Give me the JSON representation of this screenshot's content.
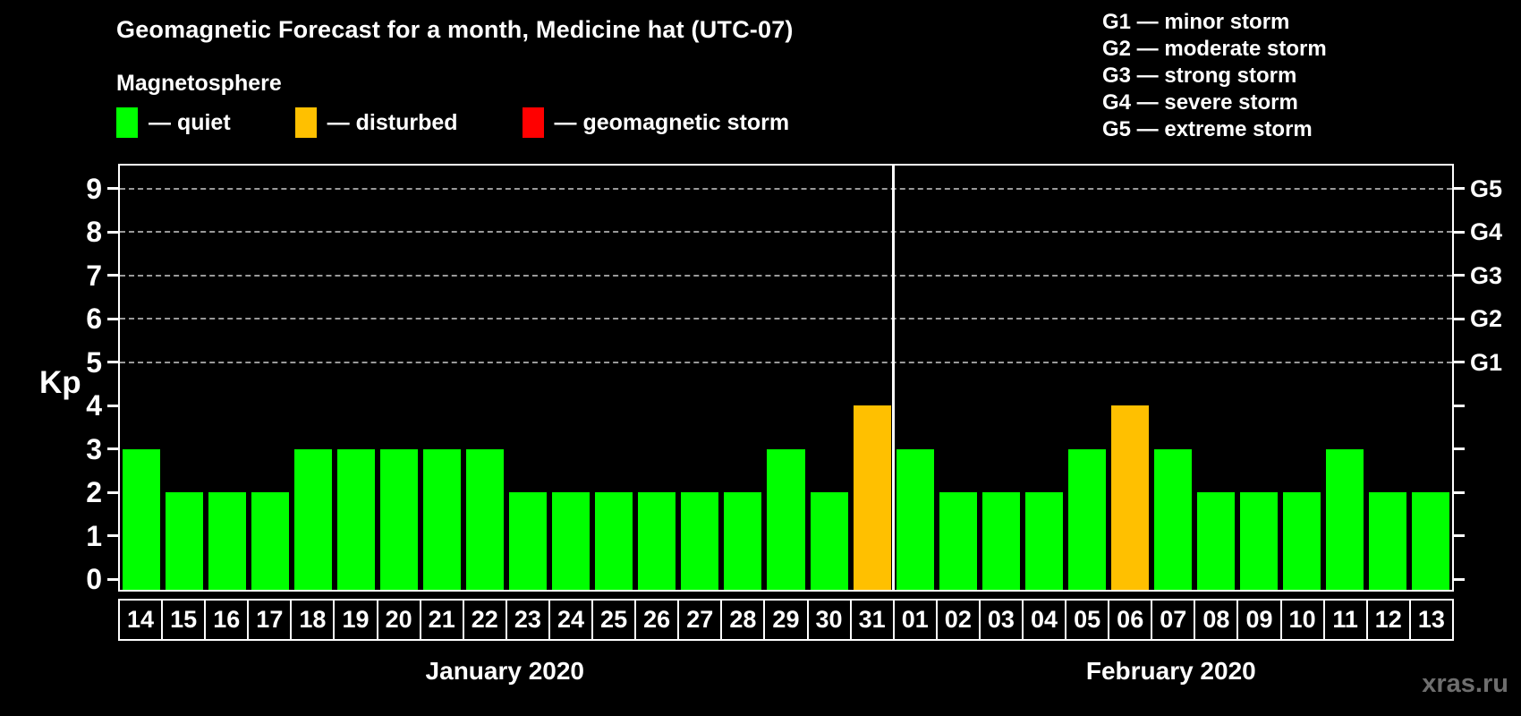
{
  "title": "Geomagnetic Forecast for a month, Medicine hat (UTC-07)",
  "subtitle": "Magnetosphere",
  "legend": {
    "items": [
      {
        "status": "quiet",
        "label": "— quiet",
        "color": "#00ff00"
      },
      {
        "status": "disturbed",
        "label": "— disturbed",
        "color": "#ffc000"
      },
      {
        "status": "storm",
        "label": "— geomagnetic storm",
        "color": "#ff0000"
      }
    ]
  },
  "storm_scale": [
    "G1 — minor storm",
    "G2 — moderate storm",
    "G3 — strong storm",
    "G4 — severe storm",
    "G5 — extreme storm"
  ],
  "watermark": "xras.ru",
  "chart_data": {
    "type": "bar",
    "title": "Geomagnetic Forecast for a month, Medicine hat (UTC-07)",
    "ylabel": "Kp",
    "ylim": [
      0,
      9.55
    ],
    "y_ticks": [
      0,
      1,
      2,
      3,
      4,
      5,
      6,
      7,
      8,
      9
    ],
    "gridlines_at": [
      5,
      6,
      7,
      8,
      9
    ],
    "grid": "dashed horizontal at G-levels only",
    "legend_position": "top",
    "right_axis_labels": [
      {
        "kp": 5,
        "label": "G1"
      },
      {
        "kp": 6,
        "label": "G2"
      },
      {
        "kp": 7,
        "label": "G3"
      },
      {
        "kp": 8,
        "label": "G4"
      },
      {
        "kp": 9,
        "label": "G5"
      }
    ],
    "months": [
      {
        "label": "January 2020",
        "days": 18
      },
      {
        "label": "February 2020",
        "days": 13
      }
    ],
    "colors": {
      "quiet": "#00ff00",
      "disturbed": "#ffc000",
      "storm": "#ff0000"
    },
    "points": [
      {
        "date": "14",
        "month": "January 2020",
        "kp": 3,
        "status": "quiet"
      },
      {
        "date": "15",
        "month": "January 2020",
        "kp": 2,
        "status": "quiet"
      },
      {
        "date": "16",
        "month": "January 2020",
        "kp": 2,
        "status": "quiet"
      },
      {
        "date": "17",
        "month": "January 2020",
        "kp": 2,
        "status": "quiet"
      },
      {
        "date": "18",
        "month": "January 2020",
        "kp": 3,
        "status": "quiet"
      },
      {
        "date": "19",
        "month": "January 2020",
        "kp": 3,
        "status": "quiet"
      },
      {
        "date": "20",
        "month": "January 2020",
        "kp": 3,
        "status": "quiet"
      },
      {
        "date": "21",
        "month": "January 2020",
        "kp": 3,
        "status": "quiet"
      },
      {
        "date": "22",
        "month": "January 2020",
        "kp": 3,
        "status": "quiet"
      },
      {
        "date": "23",
        "month": "January 2020",
        "kp": 2,
        "status": "quiet"
      },
      {
        "date": "24",
        "month": "January 2020",
        "kp": 2,
        "status": "quiet"
      },
      {
        "date": "25",
        "month": "January 2020",
        "kp": 2,
        "status": "quiet"
      },
      {
        "date": "26",
        "month": "January 2020",
        "kp": 2,
        "status": "quiet"
      },
      {
        "date": "27",
        "month": "January 2020",
        "kp": 2,
        "status": "quiet"
      },
      {
        "date": "28",
        "month": "January 2020",
        "kp": 2,
        "status": "quiet"
      },
      {
        "date": "29",
        "month": "January 2020",
        "kp": 3,
        "status": "quiet"
      },
      {
        "date": "30",
        "month": "January 2020",
        "kp": 2,
        "status": "quiet"
      },
      {
        "date": "31",
        "month": "January 2020",
        "kp": 4,
        "status": "disturbed"
      },
      {
        "date": "01",
        "month": "February 2020",
        "kp": 3,
        "status": "quiet"
      },
      {
        "date": "02",
        "month": "February 2020",
        "kp": 2,
        "status": "quiet"
      },
      {
        "date": "03",
        "month": "February 2020",
        "kp": 2,
        "status": "quiet"
      },
      {
        "date": "04",
        "month": "February 2020",
        "kp": 2,
        "status": "quiet"
      },
      {
        "date": "05",
        "month": "February 2020",
        "kp": 3,
        "status": "quiet"
      },
      {
        "date": "06",
        "month": "February 2020",
        "kp": 4,
        "status": "disturbed"
      },
      {
        "date": "07",
        "month": "February 2020",
        "kp": 3,
        "status": "quiet"
      },
      {
        "date": "08",
        "month": "February 2020",
        "kp": 2,
        "status": "quiet"
      },
      {
        "date": "09",
        "month": "February 2020",
        "kp": 2,
        "status": "quiet"
      },
      {
        "date": "10",
        "month": "February 2020",
        "kp": 2,
        "status": "quiet"
      },
      {
        "date": "11",
        "month": "February 2020",
        "kp": 3,
        "status": "quiet"
      },
      {
        "date": "12",
        "month": "February 2020",
        "kp": 2,
        "status": "quiet"
      },
      {
        "date": "13",
        "month": "February 2020",
        "kp": 2,
        "status": "quiet"
      }
    ]
  }
}
